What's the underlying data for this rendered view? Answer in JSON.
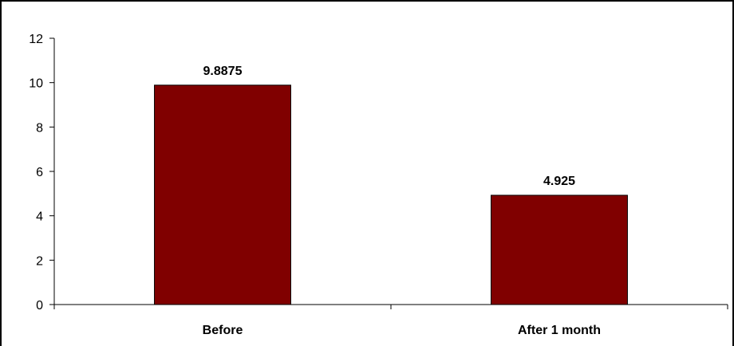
{
  "chart_data": {
    "type": "bar",
    "categories": [
      "Before",
      "After 1 month"
    ],
    "values": [
      9.8875,
      4.925
    ],
    "data_labels": [
      "9.8875",
      "4.925"
    ],
    "title": "",
    "xlabel": "",
    "ylabel": "",
    "ylim": [
      0,
      12
    ],
    "yticks": [
      "0",
      "2",
      "4",
      "6",
      "8",
      "10",
      "12"
    ],
    "grid": false,
    "legend": "none",
    "bar_color": "#800000"
  }
}
